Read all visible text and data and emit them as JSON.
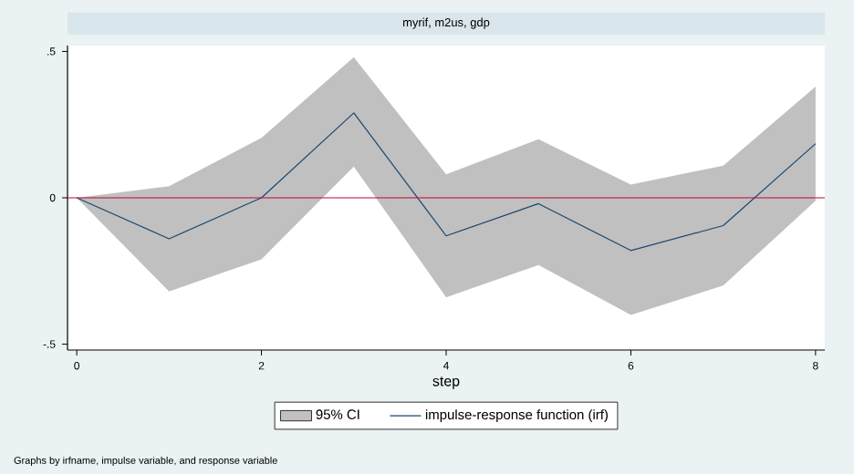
{
  "chart_data": {
    "type": "line",
    "title": "myrif, m2us, gdp",
    "xlabel": "step",
    "x": [
      0,
      1,
      2,
      3,
      4,
      5,
      6,
      7,
      8
    ],
    "series": [
      {
        "name": "95% CI",
        "type": "area",
        "color": "#c0c0c0",
        "values": [
          null,
          null,
          null,
          null,
          null,
          null,
          null,
          null,
          null
        ],
        "lower": [
          0,
          -0.32,
          -0.21,
          0.107,
          -0.34,
          -0.23,
          -0.4,
          -0.3,
          -0.01
        ],
        "upper": [
          0,
          0.04,
          0.205,
          0.48,
          0.08,
          0.2,
          0.045,
          0.11,
          0.38
        ]
      },
      {
        "name": "impulse-response function (irf)",
        "color": "#1a476f",
        "values": [
          0,
          -0.14,
          0,
          0.29,
          -0.13,
          -0.02,
          -0.18,
          -0.095,
          0.185
        ]
      }
    ],
    "xlim": [
      -0.1,
      8.1
    ],
    "ylim": [
      -0.52,
      0.52
    ],
    "xticks": [
      0,
      2,
      4,
      6,
      8
    ],
    "yticks": [
      {
        "value": -0.5,
        "label": "-.5"
      },
      0,
      {
        "value": 0.5,
        "label": ".5"
      }
    ],
    "ref_lines": [
      {
        "axis": "y",
        "value": 0,
        "color": "#c10534"
      }
    ],
    "legend": "bottom",
    "grid": false,
    "marker": "none",
    "line_style": "solid",
    "annotations": [
      "Graphs by irfname, impulse variable, and response variable"
    ]
  }
}
